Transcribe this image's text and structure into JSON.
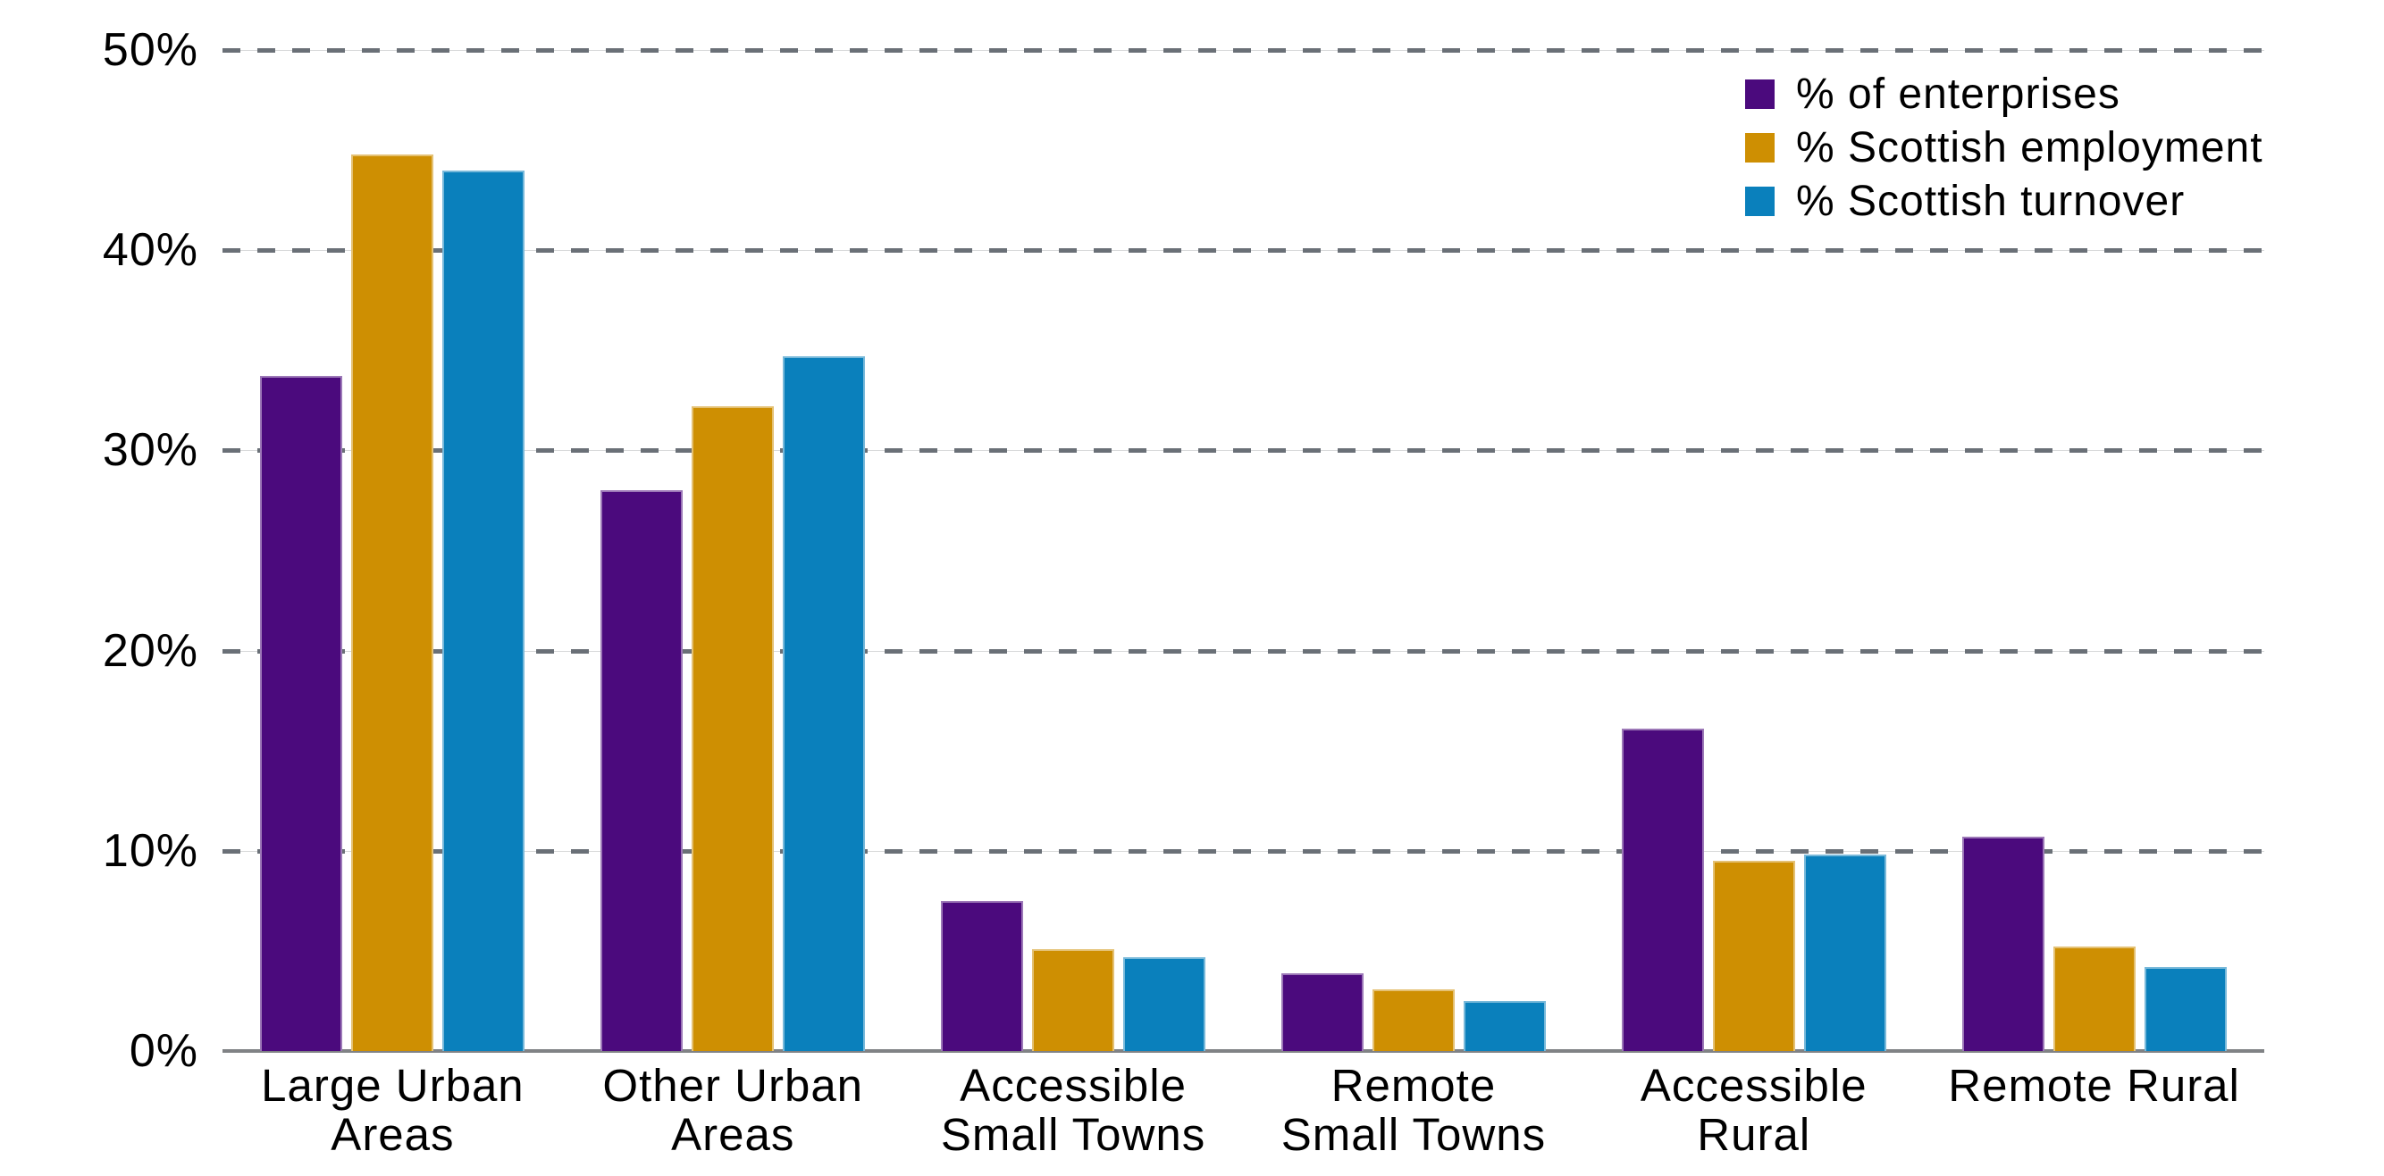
{
  "chart_data": {
    "type": "bar",
    "title": "",
    "xlabel": "",
    "ylabel": "",
    "ylim": [
      0,
      50
    ],
    "grid": "horizontal dashed gridlines every 10%, solid axis at 0%",
    "legend_position": "top-right",
    "categories": [
      "Large Urban Areas",
      "Other Urban Areas",
      "Accessible Small Towns",
      "Remote Small Towns",
      "Accessible Rural",
      "Remote Rural"
    ],
    "category_label_lines": [
      [
        "Large Urban",
        "Areas"
      ],
      [
        "Other Urban",
        "Areas"
      ],
      [
        "Accessible",
        "Small Towns"
      ],
      [
        "Remote",
        "Small Towns"
      ],
      [
        "Accessible",
        "Rural"
      ],
      [
        "Remote Rural"
      ]
    ],
    "y_ticks": [
      {
        "label": "50%",
        "value": 50
      },
      {
        "label": "40%",
        "value": 40
      },
      {
        "label": "30%",
        "value": 30
      },
      {
        "label": "20%",
        "value": 20
      },
      {
        "label": "10%",
        "value": 10
      },
      {
        "label": "0%",
        "value": 0
      }
    ],
    "series": [
      {
        "name": "% of enterprises",
        "color": "#4B0A7D",
        "values": [
          33.7,
          28.0,
          7.5,
          3.9,
          16.1,
          10.7
        ]
      },
      {
        "name": "% Scottish employment",
        "color": "#CE8F02",
        "values": [
          44.8,
          32.2,
          5.1,
          3.1,
          9.5,
          5.2
        ]
      },
      {
        "name": "% Scottish turnover",
        "color": "#0A80BC",
        "values": [
          44.0,
          34.7,
          4.7,
          2.5,
          9.8,
          4.2
        ]
      }
    ]
  },
  "colors": {
    "background": "#FFFFFF",
    "grid_dash": "#6A7077",
    "grid_faint": "#D8D9DA",
    "axis_line": "#808285",
    "text": "#000000"
  }
}
